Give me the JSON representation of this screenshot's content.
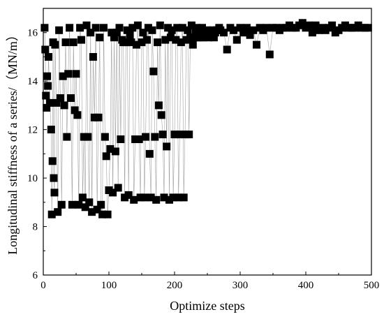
{
  "chart_data": {
    "type": "scatter",
    "xlabel": "Optimize steps",
    "ylabel": "Longitudinal stiffness of a series/（MN/m）",
    "xlim": [
      0,
      500
    ],
    "ylim": [
      6,
      17
    ],
    "x_ticks": [
      0,
      100,
      200,
      300,
      400,
      500
    ],
    "y_ticks": [
      6,
      8,
      10,
      12,
      14,
      16
    ],
    "grid": false,
    "legend": "none",
    "marker": "square",
    "marker_color": "#000000",
    "line_color": "#a0a0a0",
    "series": [
      {
        "x": [
          2,
          3,
          4,
          5,
          6,
          7,
          8,
          10,
          12,
          13,
          14,
          15,
          16,
          17,
          18,
          20,
          22,
          24,
          26,
          28,
          30,
          32,
          34,
          36,
          38,
          40,
          42,
          44,
          46,
          48,
          50,
          52,
          54,
          56,
          58,
          60,
          62,
          64,
          66,
          68,
          70,
          72,
          74,
          76,
          78,
          80,
          82,
          84,
          86,
          88,
          90,
          92,
          94,
          96,
          98,
          100,
          102,
          104,
          106,
          108,
          110,
          112,
          114,
          116,
          118,
          120,
          122,
          124,
          126,
          128,
          130,
          132,
          134,
          136,
          138,
          140,
          142,
          144,
          146,
          148,
          150,
          152,
          154,
          156,
          158,
          160,
          162,
          164,
          166,
          168,
          170,
          172,
          174,
          176,
          178,
          180,
          182,
          184,
          186,
          188,
          190,
          192,
          194,
          196,
          198,
          200,
          202,
          204,
          206,
          208,
          210,
          212,
          214,
          216,
          218,
          220,
          222,
          224,
          226,
          228,
          230,
          232,
          234,
          236,
          238,
          240,
          242,
          244,
          246,
          248,
          250,
          252,
          254,
          256,
          258,
          260,
          262,
          264,
          266,
          268,
          270,
          275,
          280,
          285,
          290,
          295,
          300,
          305,
          310,
          315,
          320,
          325,
          330,
          335,
          340,
          345,
          350,
          355,
          360,
          365,
          370,
          375,
          380,
          385,
          390,
          395,
          400,
          405,
          410,
          415,
          420,
          425,
          430,
          435,
          440,
          445,
          450,
          455,
          460,
          465,
          470,
          475,
          480,
          485,
          490,
          495
        ],
        "y": [
          16.2,
          15.3,
          13.4,
          12.9,
          14.2,
          13.8,
          15.0,
          13.1,
          12.0,
          8.5,
          10.7,
          15.6,
          10.0,
          9.4,
          15.5,
          13.1,
          8.6,
          16.1,
          13.3,
          8.9,
          14.2,
          13.0,
          15.6,
          11.7,
          14.3,
          16.2,
          13.3,
          8.9,
          15.6,
          12.8,
          14.3,
          12.6,
          8.9,
          16.2,
          15.7,
          9.2,
          11.7,
          8.8,
          16.3,
          11.7,
          9.0,
          16.0,
          8.6,
          15.0,
          12.5,
          16.2,
          8.7,
          12.5,
          15.8,
          8.9,
          8.5,
          16.2,
          11.7,
          10.9,
          8.5,
          9.5,
          11.2,
          16.0,
          9.4,
          15.8,
          11.1,
          16.0,
          9.6,
          16.2,
          11.6,
          15.7,
          15.6,
          9.2,
          15.6,
          16.1,
          9.3,
          15.9,
          15.6,
          16.2,
          9.1,
          11.6,
          15.5,
          16.3,
          11.6,
          9.2,
          15.6,
          16.0,
          9.2,
          11.7,
          15.7,
          16.2,
          11.0,
          9.2,
          16.1,
          14.4,
          11.7,
          9.1,
          15.6,
          13.0,
          16.3,
          12.6,
          11.8,
          9.2,
          15.7,
          11.3,
          16.2,
          9.1,
          15.8,
          16.1,
          9.2,
          11.8,
          15.7,
          16.2,
          9.2,
          11.8,
          15.6,
          16.2,
          9.2,
          11.8,
          15.7,
          16.1,
          11.8,
          15.8,
          16.3,
          15.5,
          15.8,
          16.1,
          16.2,
          15.8,
          16.1,
          15.8,
          16.2,
          15.8,
          16.0,
          15.9,
          16.1,
          15.8,
          16.0,
          15.9,
          16.1,
          15.8,
          16.0,
          16.1,
          16.1,
          16.2,
          16.1,
          16.0,
          15.3,
          16.2,
          16.1,
          15.7,
          16.2,
          16.0,
          16.2,
          15.9,
          16.1,
          15.5,
          16.2,
          16.1,
          16.2,
          15.1,
          16.2,
          16.2,
          16.1,
          16.2,
          16.2,
          16.3,
          16.2,
          16.2,
          16.3,
          16.4,
          16.2,
          16.3,
          16.0,
          16.3,
          16.1,
          16.2,
          16.1,
          16.2,
          16.3,
          16.0,
          16.1,
          16.2,
          16.3,
          16.2,
          16.2,
          16.2,
          16.3,
          16.2,
          16.2,
          16.2
        ]
      }
    ]
  }
}
